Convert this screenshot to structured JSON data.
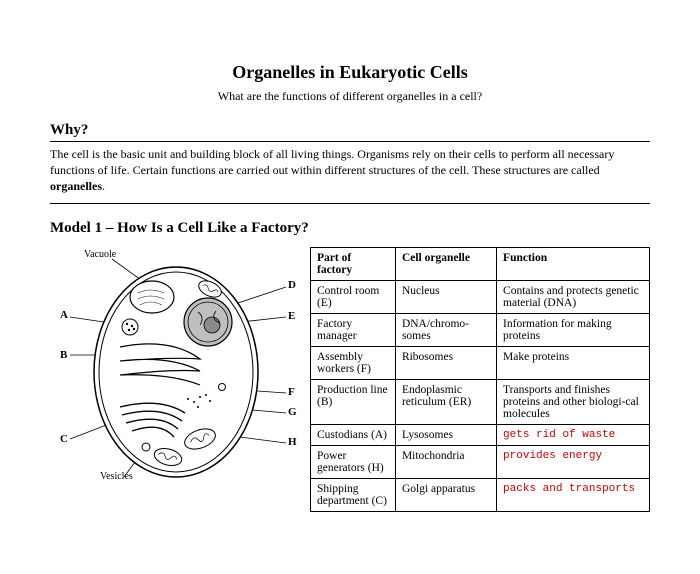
{
  "title": "Organelles in Eukaryotic Cells",
  "subtitle": "What are the functions of different organelles in a cell?",
  "why": {
    "heading": "Why?",
    "body_start": "The cell is the basic unit and building block of all living things. Organisms rely on their cells to perform all necessary functions of life. Certain functions are carried out within different structures of the cell. These structures are called ",
    "body_bold": "organelles",
    "body_end": "."
  },
  "model": {
    "heading": "Model 1 – How Is a Cell Like a Factory?",
    "labels": {
      "vacuole": "Vacuole",
      "vesicles": "Vesicles",
      "A": "A",
      "B": "B",
      "C": "C",
      "D": "D",
      "E": "E",
      "F": "F",
      "G": "G",
      "H": "H"
    }
  },
  "table": {
    "headers": [
      "Part of factory",
      "Cell organelle",
      "Function"
    ],
    "rows": [
      {
        "c0": "Control room (E)",
        "c1": "Nucleus",
        "c2": "Contains and protects genetic material (DNA)",
        "hw": false
      },
      {
        "c0": "Factory manager",
        "c1": "DNA/chromo-somes",
        "c2": "Information for making proteins",
        "hw": false
      },
      {
        "c0": "Assembly workers (F)",
        "c1": "Ribosomes",
        "c2": "Make proteins",
        "hw": false
      },
      {
        "c0": "Production line (B)",
        "c1": "Endoplasmic reticulum (ER)",
        "c2": "Transports and finishes proteins and other biologi-cal molecules",
        "hw": false
      },
      {
        "c0": "Custodians (A)",
        "c1": "Lysosomes",
        "c2": "gets rid of waste",
        "hw": true
      },
      {
        "c0": "Power generators (H)",
        "c1": "Mitochondria",
        "c2": "provides energy",
        "hw": true
      },
      {
        "c0": "Shipping department (C)",
        "c1": "Golgi apparatus",
        "c2": "packs and transports",
        "hw": true
      }
    ]
  }
}
